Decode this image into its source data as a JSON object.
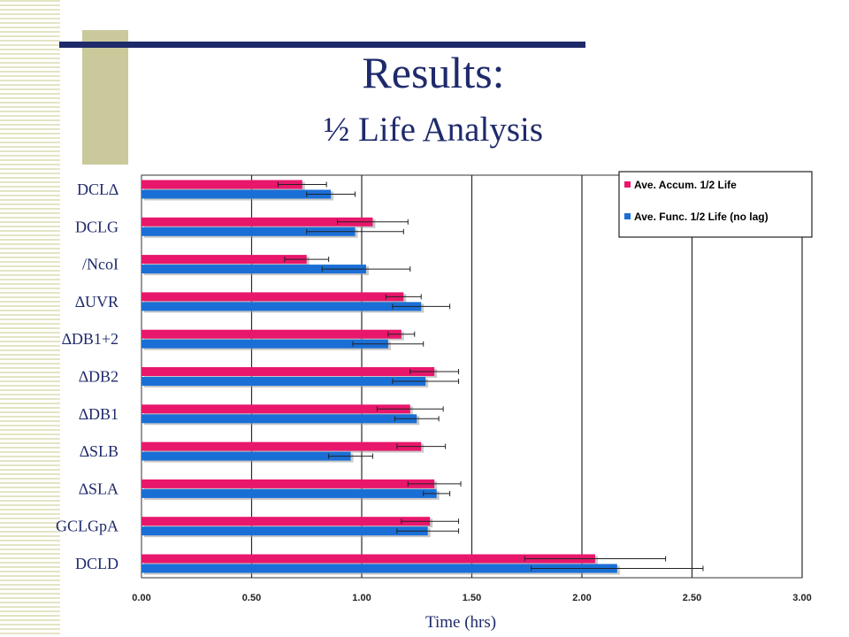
{
  "slide": {
    "title": "Results:",
    "subtitle": "½ Life Analysis"
  },
  "colors": {
    "title": "#1f2a6b",
    "accum": "#e8176c",
    "func": "#1a6fd6",
    "stripe": "#e4e4c4",
    "accent_block": "#c9c99c"
  },
  "chart_data": {
    "type": "bar",
    "orientation": "horizontal",
    "categories": [
      "DCL∆",
      "DCLG",
      "/NcoI",
      "∆UVR",
      "∆DB1+2",
      "∆DB2",
      "∆DB1",
      "∆SLB",
      "∆SLA",
      "GCLGpA",
      "DCLD"
    ],
    "series": [
      {
        "name": "Ave. Accum. 1/2 Life",
        "values": [
          0.73,
          1.05,
          0.75,
          1.19,
          1.18,
          1.33,
          1.22,
          1.27,
          1.33,
          1.31,
          2.06
        ],
        "error": [
          0.11,
          0.16,
          0.1,
          0.08,
          0.06,
          0.11,
          0.15,
          0.11,
          0.12,
          0.13,
          0.32
        ]
      },
      {
        "name": "Ave. Func. 1/2 Life (no lag)",
        "values": [
          0.86,
          0.97,
          1.02,
          1.27,
          1.12,
          1.29,
          1.25,
          0.95,
          1.34,
          1.3,
          2.16
        ],
        "error": [
          0.11,
          0.22,
          0.2,
          0.13,
          0.16,
          0.15,
          0.1,
          0.1,
          0.06,
          0.14,
          0.39
        ]
      }
    ],
    "xlim": [
      0,
      3
    ],
    "xticks": [
      "0.00",
      "0.50",
      "1.00",
      "1.50",
      "2.00",
      "2.50",
      "3.00"
    ],
    "xlabel": "Time (hrs)",
    "ylabel": "",
    "grid": "vertical",
    "legend": "top-right"
  }
}
